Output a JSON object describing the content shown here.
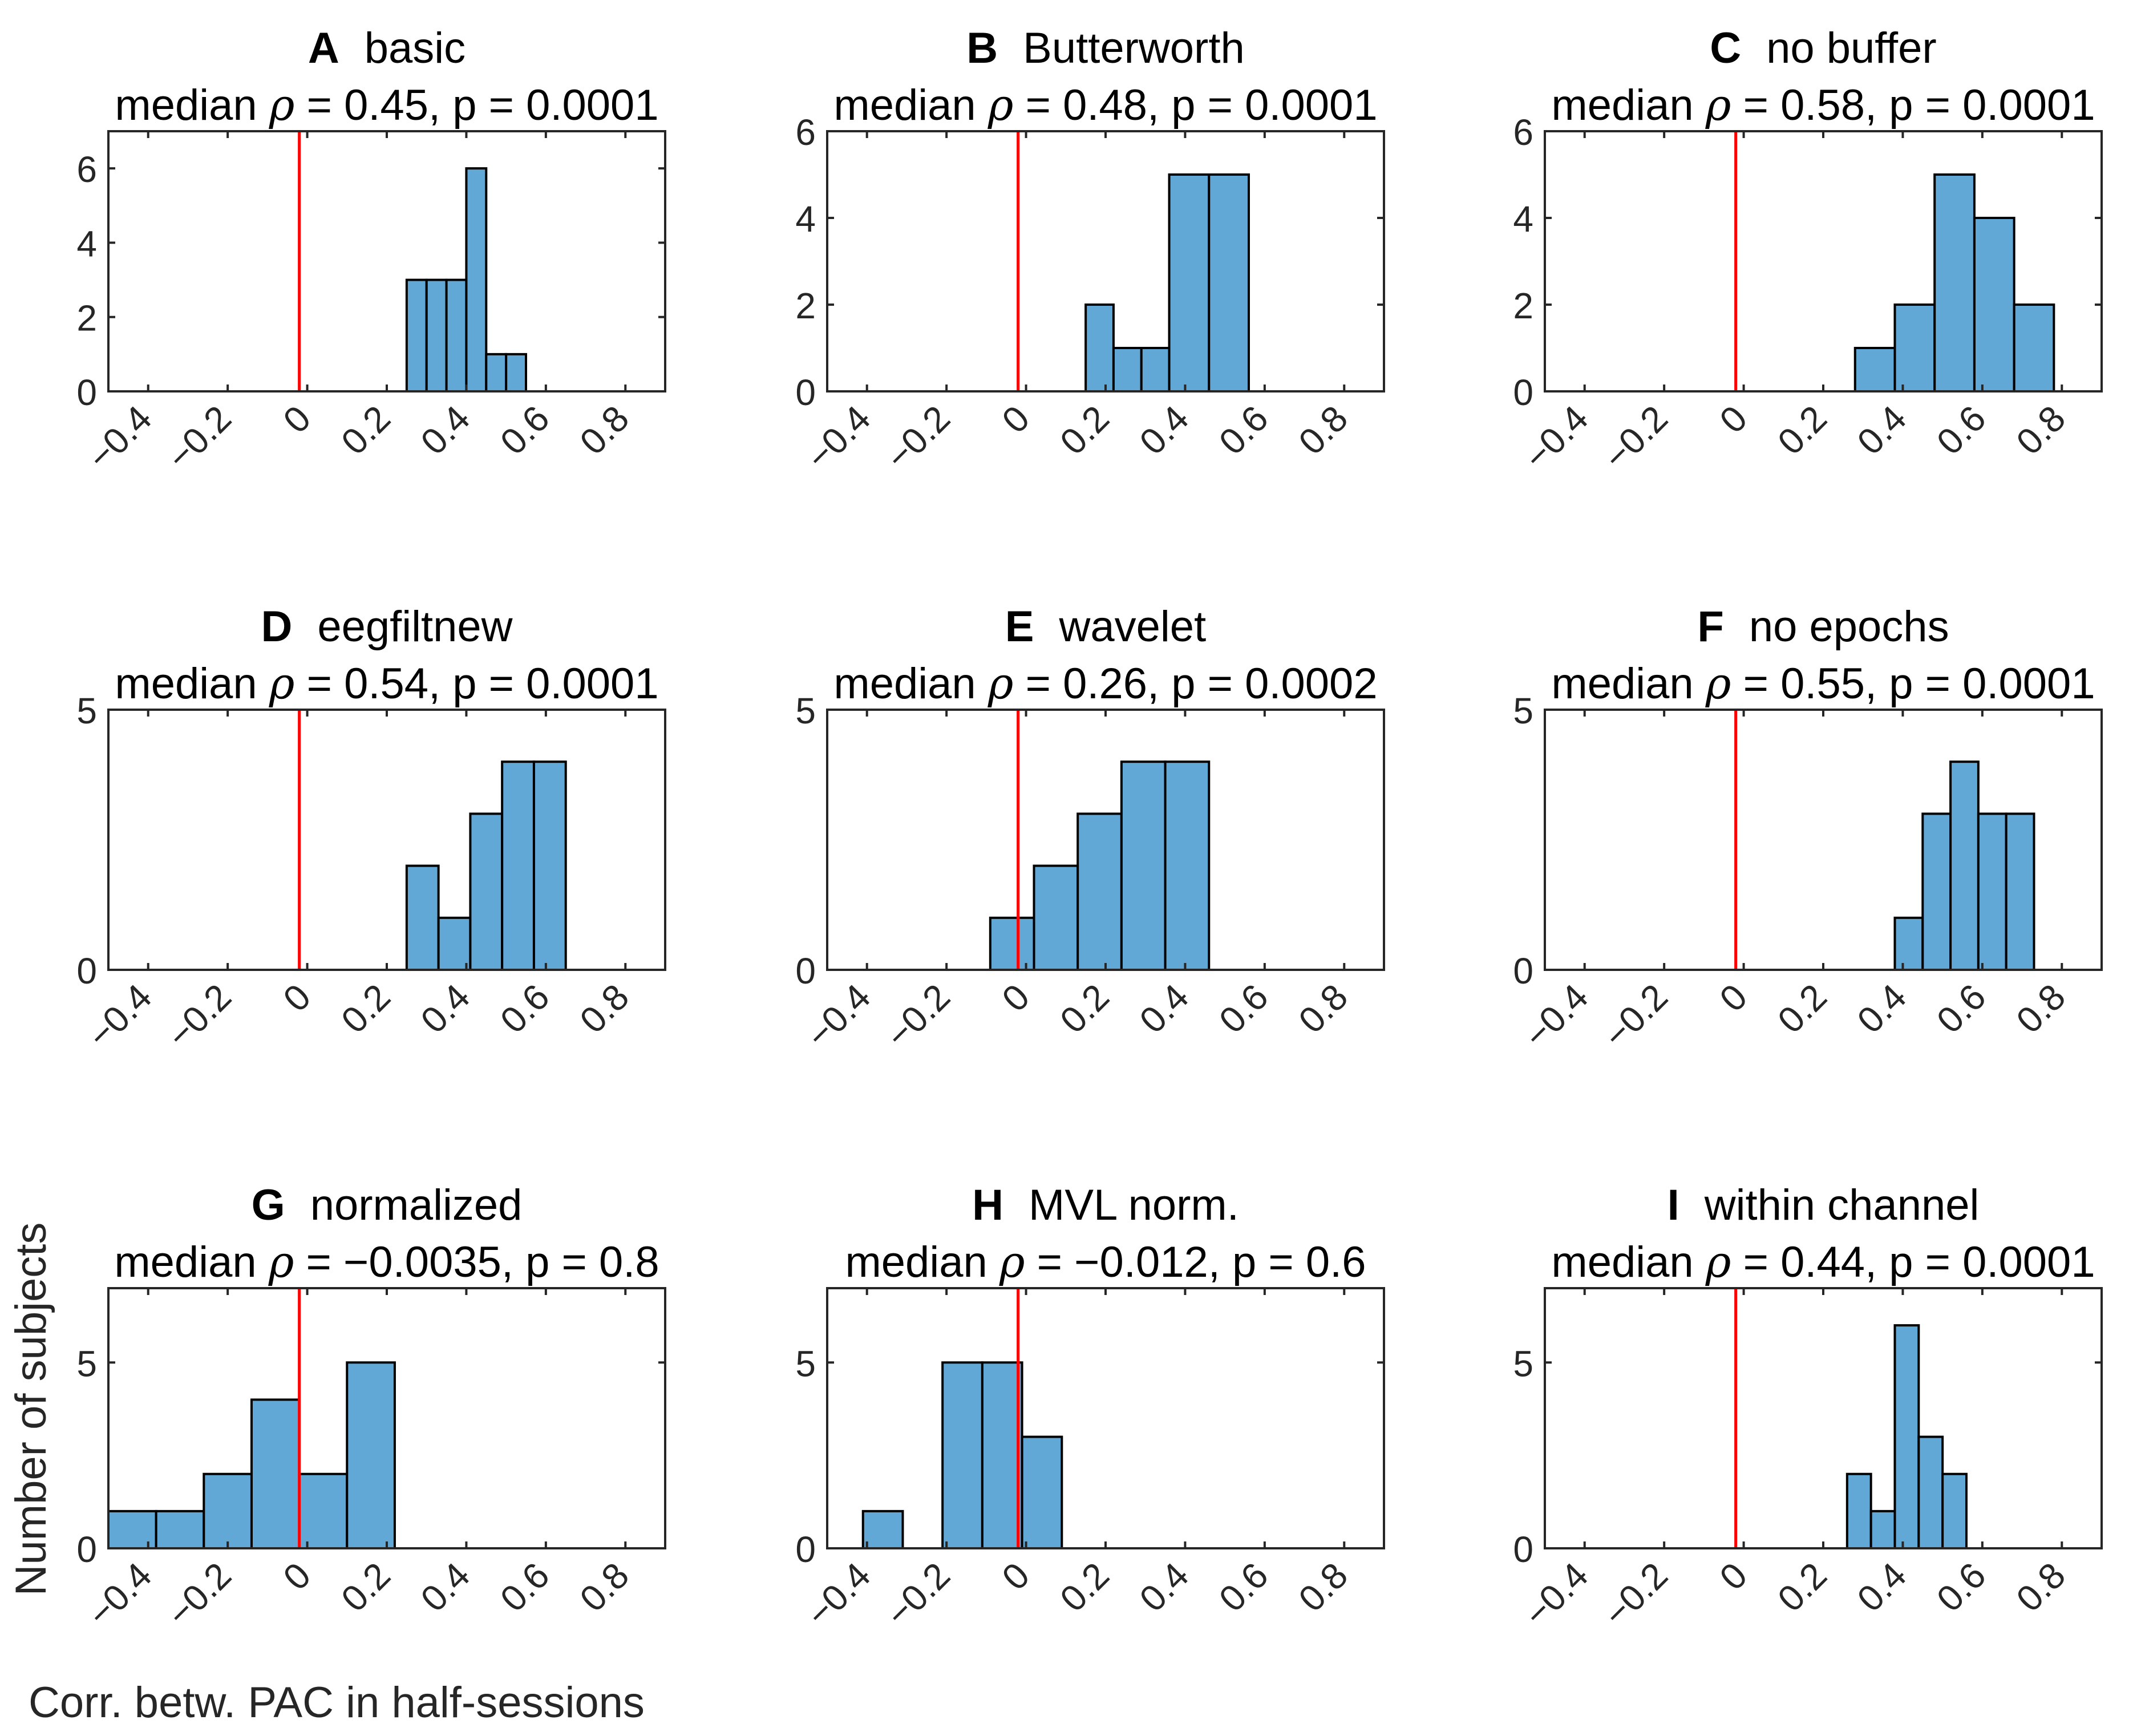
{
  "figure": {
    "ylabel": "Number of subjects",
    "xlabel": "Corr. betw. PAC in half-sessions",
    "bar_color": "#62a8d7",
    "bar_edge_color": "#000000",
    "reference_line_color": "#ff0000",
    "x_ticks": [
      -0.4,
      -0.2,
      0,
      0.2,
      0.4,
      0.6,
      0.8
    ],
    "x_tick_labels": [
      "−0.4",
      "−0.2",
      "0",
      "0.2",
      "0.4",
      "0.6",
      "0.8"
    ],
    "stat_prefix": "median",
    "rho_symbol": "ρ"
  },
  "chart_data": [
    {
      "type": "bar",
      "letter": "A",
      "name": "basic",
      "rho": "0.45",
      "p": "0.0001",
      "bins": [
        [
          0.25,
          0.3
        ],
        [
          0.3,
          0.35
        ],
        [
          0.35,
          0.4
        ],
        [
          0.4,
          0.45
        ],
        [
          0.45,
          0.5
        ],
        [
          0.5,
          0.55
        ],
        [
          0.55,
          0.6
        ]
      ],
      "values": [
        3,
        3,
        3,
        6,
        1,
        1,
        0
      ],
      "xlim": [
        -0.5,
        0.9
      ],
      "ylim": [
        0,
        7
      ],
      "y_ticks": [
        0,
        2,
        4,
        6
      ],
      "y_tick_labels": [
        "0",
        "2",
        "4",
        "6"
      ],
      "ref_line_x": -0.02
    },
    {
      "type": "bar",
      "letter": "B",
      "name": "Butterworth",
      "rho": "0.48",
      "p": "0.0001",
      "bins": [
        [
          0.15,
          0.22
        ],
        [
          0.22,
          0.29
        ],
        [
          0.29,
          0.36
        ],
        [
          0.36,
          0.46
        ],
        [
          0.46,
          0.56
        ],
        [
          0.56,
          0.6
        ]
      ],
      "values": [
        2,
        1,
        1,
        5,
        5,
        0
      ],
      "xlim": [
        -0.5,
        0.9
      ],
      "ylim": [
        0,
        6
      ],
      "y_ticks": [
        0,
        2,
        4,
        6
      ],
      "y_tick_labels": [
        "0",
        "2",
        "4",
        "6"
      ],
      "ref_line_x": -0.02
    },
    {
      "type": "bar",
      "letter": "C",
      "name": "no buffer",
      "rho": "0.58",
      "p": "0.0001",
      "bins": [
        [
          0.28,
          0.38
        ],
        [
          0.38,
          0.48
        ],
        [
          0.48,
          0.58
        ],
        [
          0.58,
          0.68
        ],
        [
          0.68,
          0.78
        ]
      ],
      "values": [
        1,
        2,
        5,
        4,
        2
      ],
      "xlim": [
        -0.5,
        0.9
      ],
      "ylim": [
        0,
        6
      ],
      "y_ticks": [
        0,
        2,
        4,
        6
      ],
      "y_tick_labels": [
        "0",
        "2",
        "4",
        "6"
      ],
      "ref_line_x": -0.02
    },
    {
      "type": "bar",
      "letter": "D",
      "name": "eegfiltnew",
      "rho": "0.54",
      "p": "0.0001",
      "bins": [
        [
          0.25,
          0.33
        ],
        [
          0.33,
          0.41
        ],
        [
          0.41,
          0.49
        ],
        [
          0.49,
          0.57
        ],
        [
          0.57,
          0.65
        ]
      ],
      "values": [
        2,
        1,
        3,
        4,
        4
      ],
      "xlim": [
        -0.5,
        0.9
      ],
      "ylim": [
        0,
        5
      ],
      "y_ticks": [
        0,
        5
      ],
      "y_tick_labels": [
        "0",
        "5"
      ],
      "ref_line_x": -0.02
    },
    {
      "type": "bar",
      "letter": "E",
      "name": "wavelet",
      "rho": "0.26",
      "p": "0.0002",
      "bins": [
        [
          -0.09,
          0.02
        ],
        [
          0.02,
          0.13
        ],
        [
          0.13,
          0.24
        ],
        [
          0.24,
          0.35
        ],
        [
          0.35,
          0.46
        ]
      ],
      "values": [
        1,
        2,
        3,
        4,
        4
      ],
      "xlim": [
        -0.5,
        0.9
      ],
      "ylim": [
        0,
        5
      ],
      "y_ticks": [
        0,
        5
      ],
      "y_tick_labels": [
        "0",
        "5"
      ],
      "ref_line_x": -0.02
    },
    {
      "type": "bar",
      "letter": "F",
      "name": "no epochs",
      "rho": "0.55",
      "p": "0.0001",
      "bins": [
        [
          0.38,
          0.45
        ],
        [
          0.45,
          0.52
        ],
        [
          0.52,
          0.59
        ],
        [
          0.59,
          0.66
        ],
        [
          0.66,
          0.73
        ]
      ],
      "values": [
        1,
        3,
        4,
        3,
        3
      ],
      "xlim": [
        -0.5,
        0.9
      ],
      "ylim": [
        0,
        5
      ],
      "y_ticks": [
        0,
        5
      ],
      "y_tick_labels": [
        "0",
        "5"
      ],
      "ref_line_x": -0.02
    },
    {
      "type": "bar",
      "letter": "G",
      "name": "normalized",
      "rho": "−0.0035",
      "p": "0.8",
      "bins": [
        [
          -0.5,
          -0.38
        ],
        [
          -0.38,
          -0.26
        ],
        [
          -0.26,
          -0.14
        ],
        [
          -0.14,
          -0.02
        ],
        [
          -0.02,
          0.1
        ],
        [
          0.1,
          0.22
        ]
      ],
      "values": [
        1,
        1,
        2,
        4,
        2,
        5
      ],
      "xlim": [
        -0.5,
        0.9
      ],
      "ylim": [
        0,
        7
      ],
      "y_ticks": [
        0,
        5
      ],
      "y_tick_labels": [
        "0",
        "5"
      ],
      "ref_line_x": -0.02
    },
    {
      "type": "bar",
      "letter": "H",
      "name": "MVL norm.",
      "rho": "−0.012",
      "p": "0.6",
      "bins": [
        [
          -0.41,
          -0.31
        ],
        [
          -0.31,
          -0.21
        ],
        [
          -0.21,
          -0.11
        ],
        [
          -0.11,
          -0.01
        ],
        [
          -0.01,
          0.09
        ],
        [
          0.09,
          0.19
        ]
      ],
      "values": [
        1,
        0,
        5,
        5,
        3,
        0
      ],
      "xlim": [
        -0.5,
        0.9
      ],
      "ylim": [
        0,
        7
      ],
      "y_ticks": [
        0,
        5
      ],
      "y_tick_labels": [
        "0",
        "5"
      ],
      "ref_line_x": -0.02
    },
    {
      "type": "bar",
      "letter": "I",
      "name": "within channel",
      "rho": "0.44",
      "p": "0.0001",
      "bins": [
        [
          0.26,
          0.32
        ],
        [
          0.32,
          0.38
        ],
        [
          0.38,
          0.44
        ],
        [
          0.44,
          0.5
        ],
        [
          0.5,
          0.56
        ]
      ],
      "values": [
        2,
        1,
        6,
        3,
        2
      ],
      "xlim": [
        -0.5,
        0.9
      ],
      "ylim": [
        0,
        7
      ],
      "y_ticks": [
        0,
        5
      ],
      "y_tick_labels": [
        "0",
        "5"
      ],
      "ref_line_x": -0.02
    }
  ]
}
